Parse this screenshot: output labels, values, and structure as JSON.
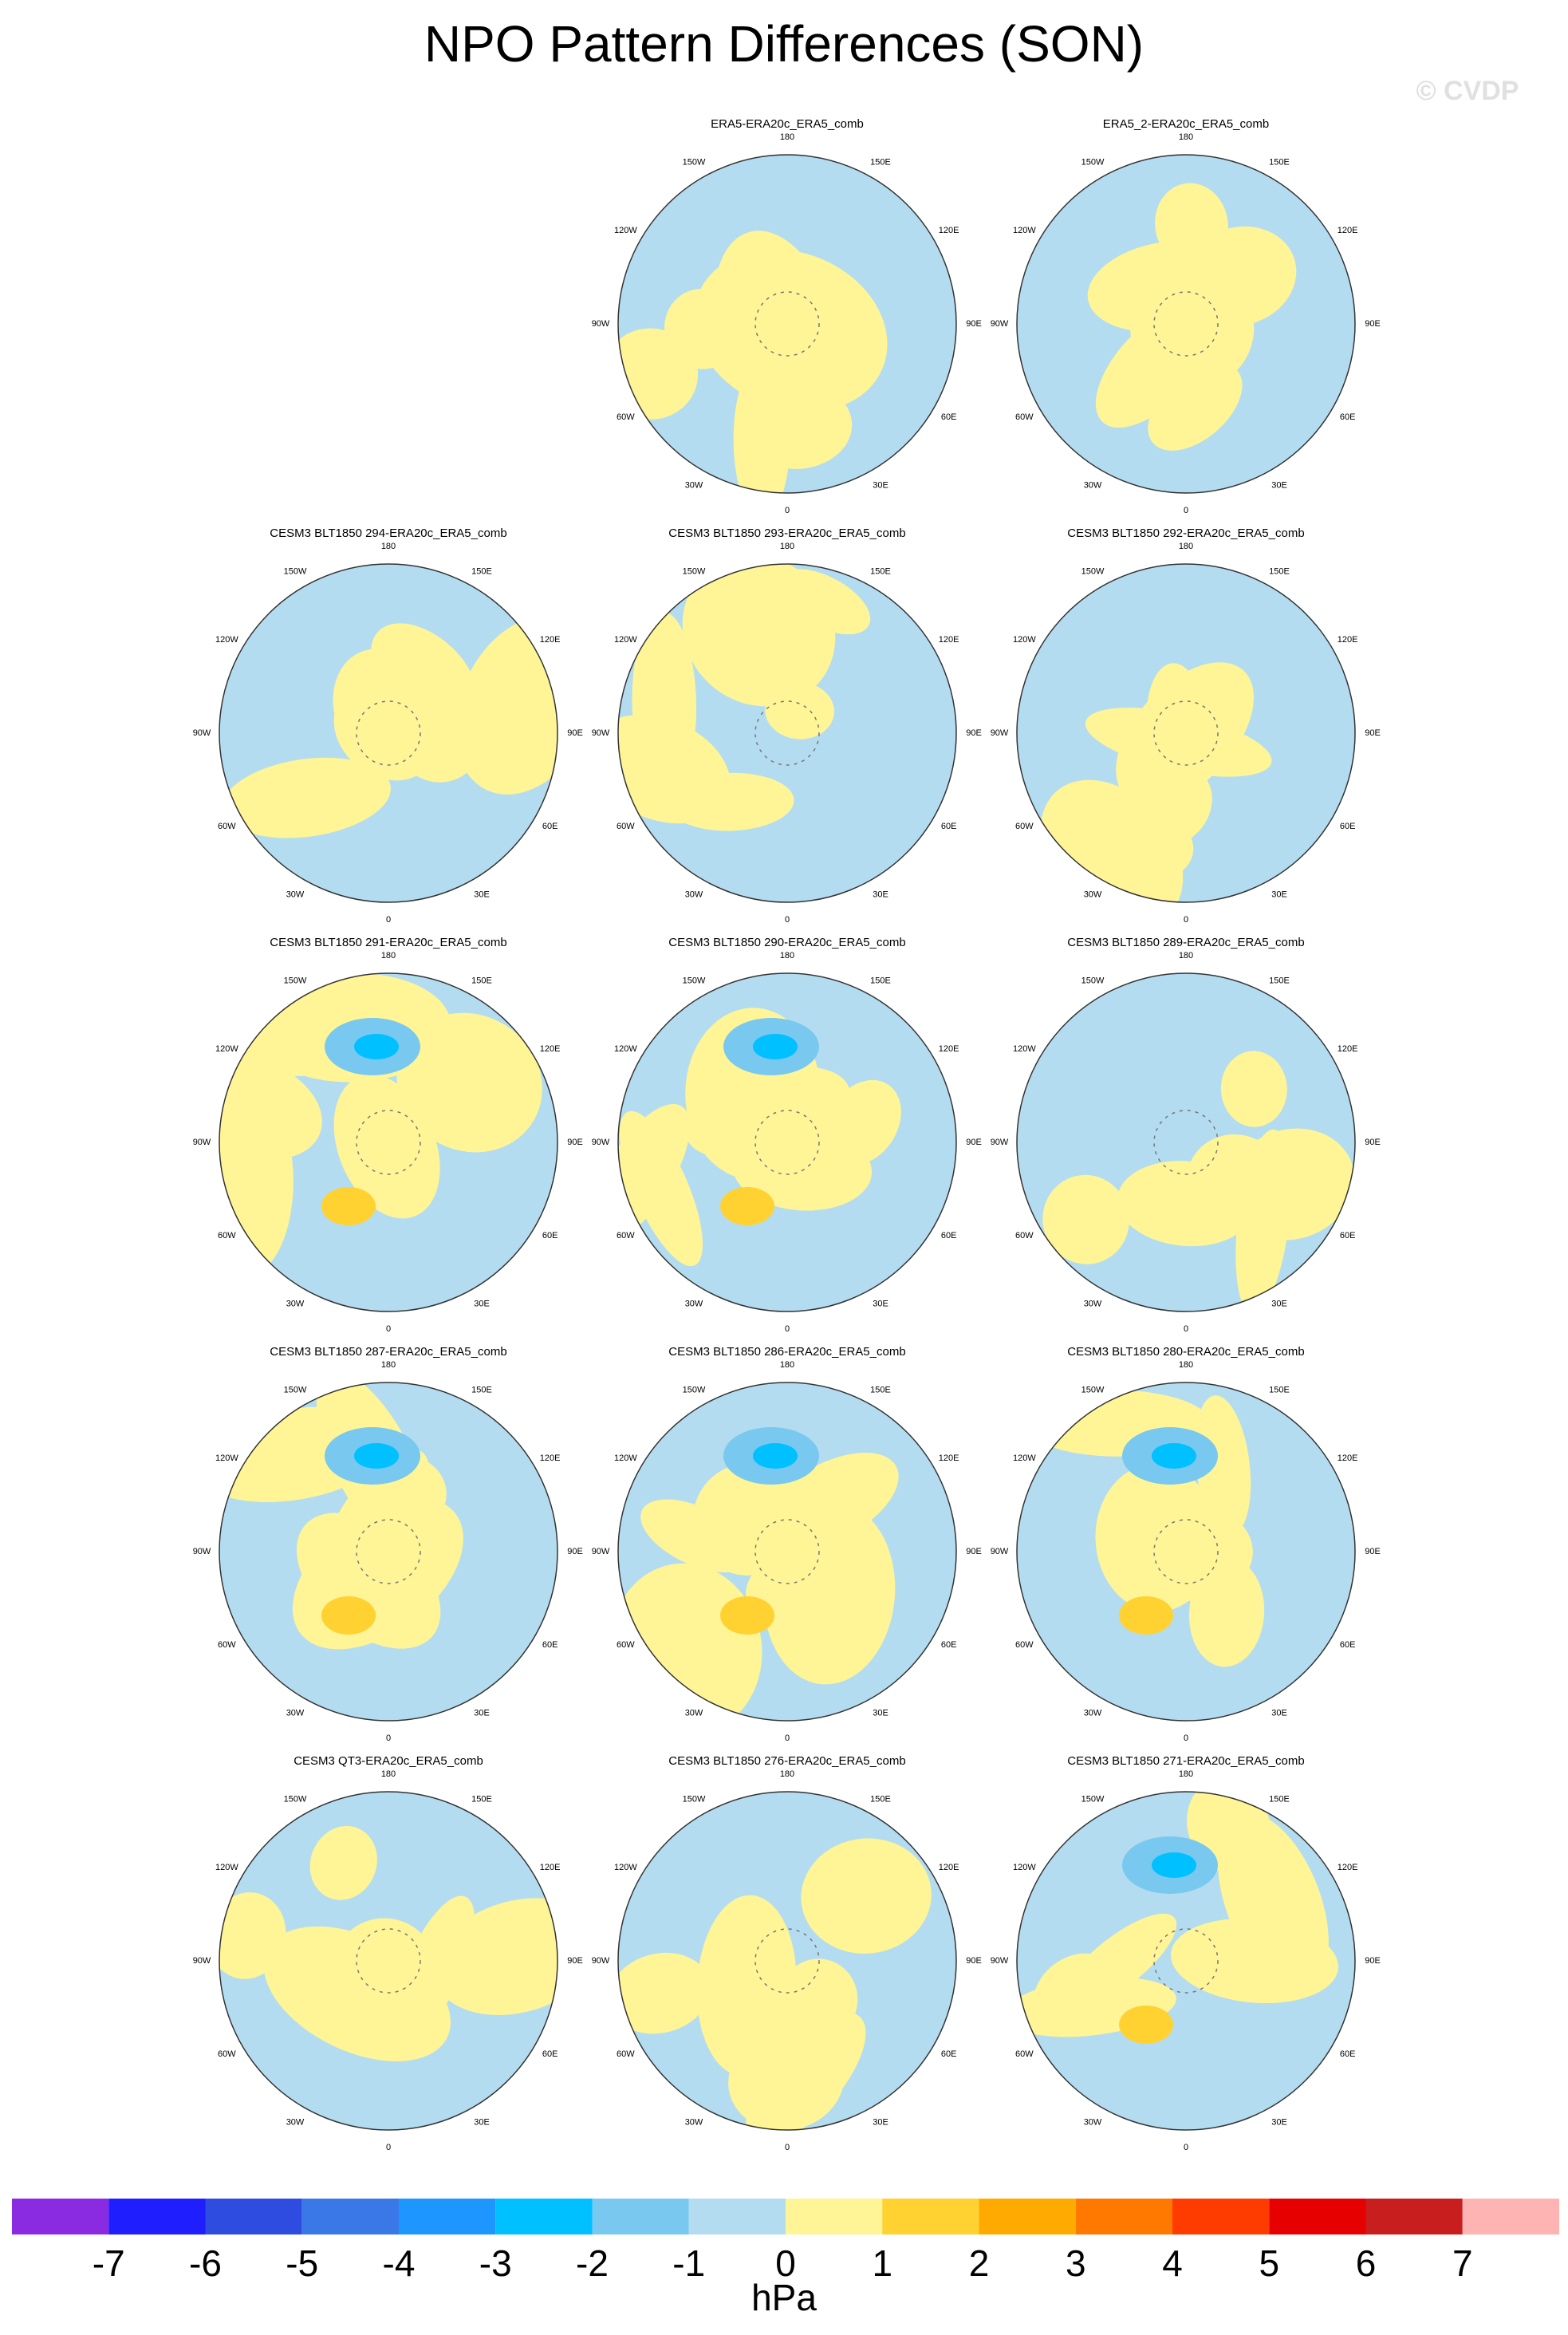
{
  "title": "NPO Pattern Differences (SON)",
  "watermark": "© CVDP",
  "lon_labels": [
    "180",
    "150E",
    "120E",
    "90E",
    "60E",
    "30E",
    "0",
    "30W",
    "60W",
    "90W",
    "120W",
    "150W"
  ],
  "panels": [
    {
      "title": "ERA5-ERA20c_ERA5_comb"
    },
    {
      "title": "ERA5_2-ERA20c_ERA5_comb"
    },
    {
      "title": "CESM3 BLT1850 294-ERA20c_ERA5_comb"
    },
    {
      "title": "CESM3 BLT1850 293-ERA20c_ERA5_comb"
    },
    {
      "title": "CESM3 BLT1850 292-ERA20c_ERA5_comb"
    },
    {
      "title": "CESM3 BLT1850 291-ERA20c_ERA5_comb"
    },
    {
      "title": "CESM3 BLT1850 290-ERA20c_ERA5_comb"
    },
    {
      "title": "CESM3 BLT1850 289-ERA20c_ERA5_comb"
    },
    {
      "title": "CESM3 BLT1850 287-ERA20c_ERA5_comb"
    },
    {
      "title": "CESM3 BLT1850 286-ERA20c_ERA5_comb"
    },
    {
      "title": "CESM3 BLT1850 280-ERA20c_ERA5_comb"
    },
    {
      "title": "CESM3 QT3-ERA20c_ERA5_comb"
    },
    {
      "title": "CESM3 BLT1850 276-ERA20c_ERA5_comb"
    },
    {
      "title": "CESM3 BLT1850 271-ERA20c_ERA5_comb"
    }
  ],
  "colorbar": {
    "colors": [
      "#8a2be2",
      "#1e1eff",
      "#2e4ce0",
      "#3a78e8",
      "#1e96ff",
      "#00c0ff",
      "#78c8f0",
      "#b4dcf0",
      "#fff596",
      "#ffd232",
      "#ffaa00",
      "#ff7800",
      "#ff3c00",
      "#e60000",
      "#c81e1e",
      "#ffb4b4"
    ],
    "ticks": [
      -7,
      -6,
      -5,
      -4,
      -3,
      -2,
      -1,
      0,
      1,
      2,
      3,
      4,
      5,
      6,
      7
    ],
    "label": "hPa"
  }
}
